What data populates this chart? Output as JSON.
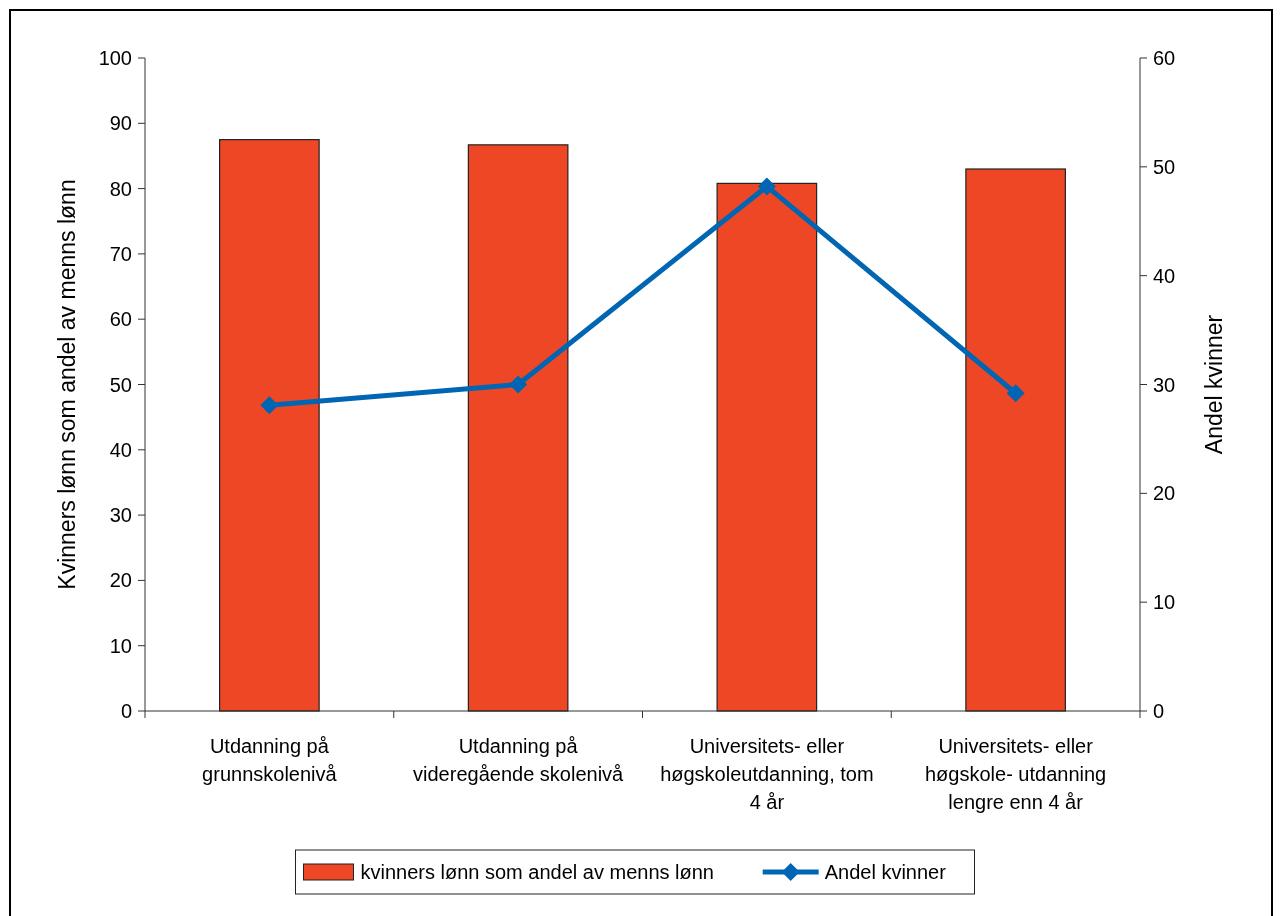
{
  "chart_data": {
    "type": "bar",
    "ylabel": "Kvinners lønn som andel av menns lønn",
    "y2label": "Andel kvinner",
    "categories": [
      "Utdanning på grunnskolenivå",
      "Utdanning på videregående skolenivå",
      "Universitets- eller høgskoleutdanning, tom 4 år",
      "Universitets- eller høgskole- utdanning lengre enn 4 år"
    ],
    "series": [
      {
        "name": "kvinners lønn som andel av menns lønn",
        "color": "#ee4725",
        "values": [
          87.5,
          86.7,
          80.8,
          83.0
        ]
      },
      {
        "name": "Andel kvinner",
        "type": "line",
        "axis": "y2",
        "color": "#0066b3",
        "marker": "diamond",
        "values": [
          28.1,
          30.0,
          48.2,
          29.2
        ]
      }
    ],
    "ylim": [
      0,
      100
    ],
    "yticks": [
      0,
      10,
      20,
      30,
      40,
      50,
      60,
      70,
      80,
      90,
      100
    ],
    "y2lim": [
      0,
      60
    ],
    "y2ticks": [
      0,
      10,
      20,
      30,
      40,
      50,
      60
    ],
    "legend": "bottom",
    "grid": false
  }
}
